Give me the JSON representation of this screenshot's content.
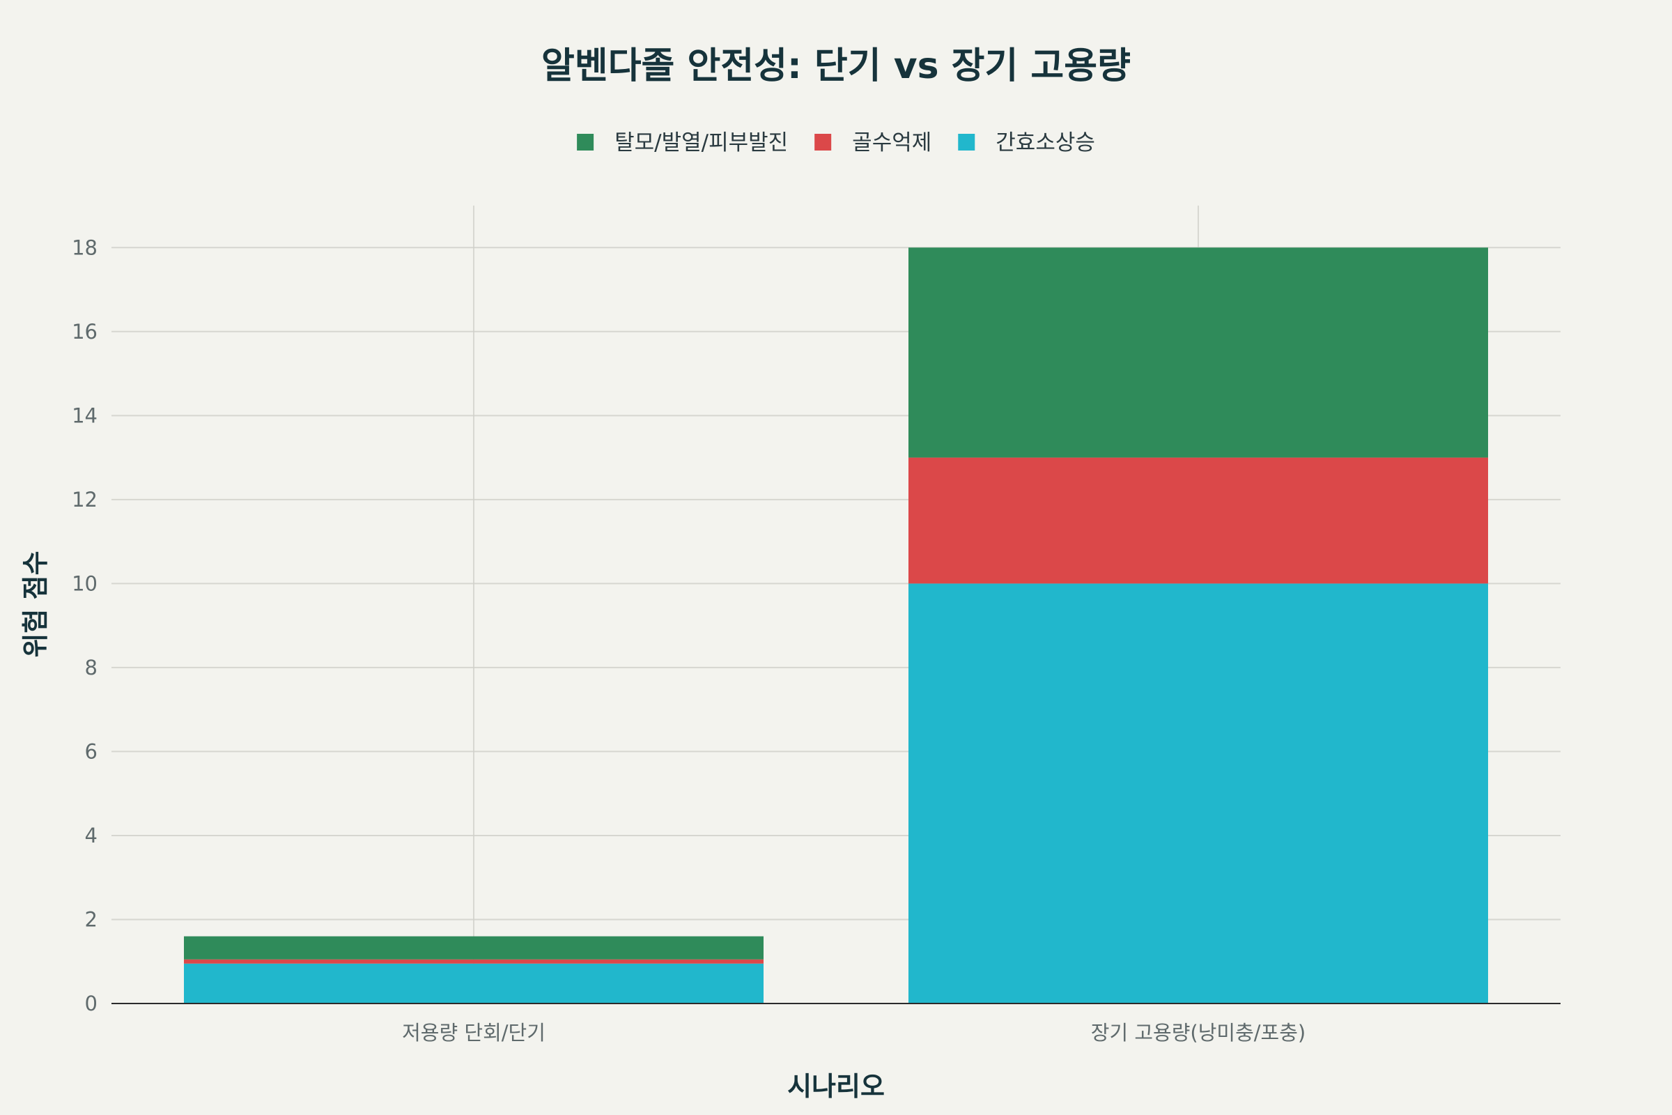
{
  "chart_data": {
    "type": "bar",
    "stacked": true,
    "title": "알벤다졸 안전성: 단기 vs 장기 고용량",
    "xlabel": "시나리오",
    "ylabel": "위험 점수",
    "categories": [
      "저용량 단회/단기",
      "장기 고용량(낭미충/포충)"
    ],
    "series": [
      {
        "name": "간효소상승",
        "color": "#21b7cc",
        "values": [
          0.95,
          10
        ]
      },
      {
        "name": "골수억제",
        "color": "#db4849",
        "values": [
          0.1,
          3
        ]
      },
      {
        "name": "탈모/발열/피부발진",
        "color": "#2f8b5a",
        "values": [
          0.55,
          5
        ]
      }
    ],
    "legend_order": [
      "탈모/발열/피부발진",
      "골수억제",
      "간효소상승"
    ],
    "ylim": [
      0,
      19
    ],
    "yticks": [
      0,
      2,
      4,
      6,
      8,
      10,
      12,
      14,
      16,
      18
    ],
    "grid": true,
    "legend_position": "top-center"
  }
}
